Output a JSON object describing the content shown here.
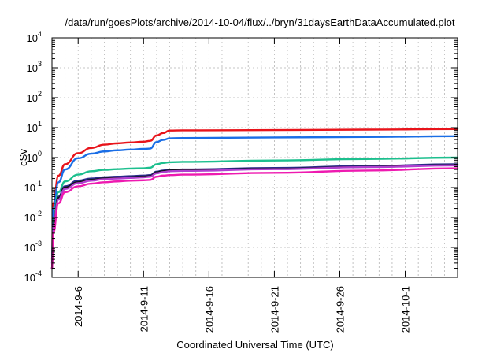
{
  "chart_data": {
    "type": "line",
    "title": "/data/run/goesPlots/archive/2014-10-04/flux/../bryn/31daysEarthDataAccumulated.plot",
    "xlabel": "Coordinated Universal Time (UTC)",
    "ylabel": "cSv",
    "x_scale": "date",
    "y_scale": "log",
    "xlim": [
      "2014-09-04",
      "2014-10-05"
    ],
    "ylim": [
      0.0001,
      10000
    ],
    "grid": true,
    "x_ticks": [
      "2014-9-6",
      "2014-9-11",
      "2014-9-16",
      "2014-9-21",
      "2014-9-26",
      "2014-10-1"
    ],
    "y_ticks": [
      {
        "base": "10",
        "exp": "-4",
        "value": 0.0001
      },
      {
        "base": "10",
        "exp": "-3",
        "value": 0.001
      },
      {
        "base": "10",
        "exp": "-2",
        "value": 0.01
      },
      {
        "base": "10",
        "exp": "-1",
        "value": 0.1
      },
      {
        "base": "10",
        "exp": "0",
        "value": 1
      },
      {
        "base": "10",
        "exp": "1",
        "value": 10
      },
      {
        "base": "10",
        "exp": "2",
        "value": 100
      },
      {
        "base": "10",
        "exp": "3",
        "value": 1000
      },
      {
        "base": "10",
        "exp": "4",
        "value": 10000
      }
    ],
    "series": [
      {
        "color": "#e8141b",
        "x": [
          "2014-09-04",
          "2014-09-04 02:00",
          "2014-09-04 12:00",
          "2014-09-05",
          "2014-09-06",
          "2014-09-07",
          "2014-09-08",
          "2014-09-09",
          "2014-09-10",
          "2014-09-11",
          "2014-09-11 12:00",
          "2014-09-12",
          "2014-09-12 12:00",
          "2014-09-13",
          "2014-09-14",
          "2014-09-21",
          "2014-09-28",
          "2014-10-05"
        ],
        "y": [
          0.0004,
          0.03,
          0.25,
          0.6,
          1.4,
          2.1,
          2.7,
          3.0,
          3.2,
          3.4,
          3.6,
          5.5,
          6.6,
          8.0,
          8.1,
          8.3,
          8.6,
          9.0
        ]
      },
      {
        "color": "#1a6ee6",
        "x": [
          "2014-09-04",
          "2014-09-04 02:00",
          "2014-09-04 12:00",
          "2014-09-05",
          "2014-09-06",
          "2014-09-07",
          "2014-09-08",
          "2014-09-09",
          "2014-09-10",
          "2014-09-11",
          "2014-09-11 12:00",
          "2014-09-12",
          "2014-09-12 12:00",
          "2014-09-13",
          "2014-09-14",
          "2014-09-21",
          "2014-09-28",
          "2014-10-05"
        ],
        "y": [
          0.0003,
          0.02,
          0.15,
          0.4,
          0.95,
          1.35,
          1.6,
          1.75,
          1.85,
          1.95,
          2.0,
          3.3,
          3.9,
          4.4,
          4.5,
          4.7,
          4.9,
          5.2
        ]
      },
      {
        "color": "#1dbf8e",
        "x": [
          "2014-09-04",
          "2014-09-04 02:00",
          "2014-09-04 12:00",
          "2014-09-05",
          "2014-09-06",
          "2014-09-07",
          "2014-09-08",
          "2014-09-09",
          "2014-09-10",
          "2014-09-11",
          "2014-09-11 12:00",
          "2014-09-12",
          "2014-09-12 12:00",
          "2014-09-13",
          "2014-09-14",
          "2014-09-21",
          "2014-09-28",
          "2014-10-05"
        ],
        "y": [
          0.0002,
          0.008,
          0.07,
          0.16,
          0.27,
          0.35,
          0.39,
          0.41,
          0.43,
          0.44,
          0.46,
          0.6,
          0.66,
          0.7,
          0.72,
          0.8,
          0.9,
          1.0
        ]
      },
      {
        "color": "#2a2a8a",
        "x": [
          "2014-09-04",
          "2014-09-04 02:00",
          "2014-09-04 12:00",
          "2014-09-05",
          "2014-09-06",
          "2014-09-07",
          "2014-09-08",
          "2014-09-09",
          "2014-09-10",
          "2014-09-11",
          "2014-09-11 12:00",
          "2014-09-12",
          "2014-09-12 12:00",
          "2014-09-13",
          "2014-09-14",
          "2014-09-21",
          "2014-09-28",
          "2014-10-05"
        ],
        "y": [
          0.0002,
          0.006,
          0.05,
          0.11,
          0.17,
          0.2,
          0.22,
          0.23,
          0.24,
          0.25,
          0.26,
          0.34,
          0.37,
          0.39,
          0.4,
          0.45,
          0.52,
          0.6
        ]
      },
      {
        "color": "#111111",
        "x": [
          "2014-09-04",
          "2014-09-04 02:00",
          "2014-09-04 12:00",
          "2014-09-05",
          "2014-09-06",
          "2014-09-07",
          "2014-09-08",
          "2014-09-09",
          "2014-09-10",
          "2014-09-11",
          "2014-09-11 12:00",
          "2014-09-12",
          "2014-09-12 12:00",
          "2014-09-13",
          "2014-09-14",
          "2014-09-21",
          "2014-09-28",
          "2014-10-05"
        ],
        "y": [
          0.0002,
          0.005,
          0.045,
          0.1,
          0.15,
          0.18,
          0.2,
          0.21,
          0.22,
          0.23,
          0.24,
          0.32,
          0.35,
          0.37,
          0.38,
          0.42,
          0.49,
          0.56
        ]
      },
      {
        "color": "#b03fd0",
        "x": [
          "2014-09-04",
          "2014-09-04 02:00",
          "2014-09-04 12:00",
          "2014-09-05",
          "2014-09-06",
          "2014-09-07",
          "2014-09-08",
          "2014-09-09",
          "2014-09-10",
          "2014-09-11",
          "2014-09-11 12:00",
          "2014-09-12",
          "2014-09-12 12:00",
          "2014-09-13",
          "2014-09-14",
          "2014-09-21",
          "2014-09-28",
          "2014-10-05"
        ],
        "y": [
          0.0002,
          0.005,
          0.04,
          0.09,
          0.14,
          0.17,
          0.19,
          0.2,
          0.21,
          0.22,
          0.23,
          0.3,
          0.33,
          0.35,
          0.36,
          0.41,
          0.48,
          0.55
        ]
      },
      {
        "color": "#ee1ab0",
        "x": [
          "2014-09-04",
          "2014-09-04 02:00",
          "2014-09-04 12:00",
          "2014-09-05",
          "2014-09-06",
          "2014-09-07",
          "2014-09-08",
          "2014-09-09",
          "2014-09-10",
          "2014-09-11",
          "2014-09-11 12:00",
          "2014-09-12",
          "2014-09-12 12:00",
          "2014-09-13",
          "2014-09-14",
          "2014-09-21",
          "2014-09-28",
          "2014-10-05"
        ],
        "y": [
          0.0002,
          0.003,
          0.03,
          0.07,
          0.11,
          0.135,
          0.15,
          0.16,
          0.17,
          0.175,
          0.18,
          0.23,
          0.25,
          0.26,
          0.27,
          0.31,
          0.37,
          0.44
        ]
      }
    ]
  }
}
